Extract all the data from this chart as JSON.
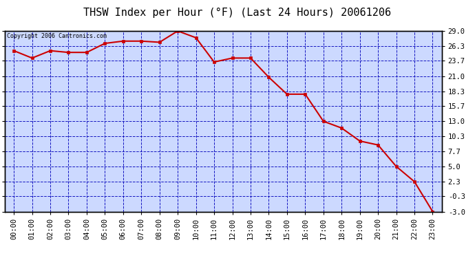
{
  "title": "THSW Index per Hour (°F) (Last 24 Hours) 20061206",
  "copyright": "Copyright 2006 Cantronics.com",
  "x_labels": [
    "00:00",
    "01:00",
    "02:00",
    "03:00",
    "04:00",
    "05:00",
    "06:00",
    "07:00",
    "08:00",
    "09:00",
    "10:00",
    "11:00",
    "12:00",
    "13:00",
    "14:00",
    "15:00",
    "16:00",
    "17:00",
    "18:00",
    "19:00",
    "20:00",
    "21:00",
    "22:00",
    "23:00"
  ],
  "y_values": [
    25.5,
    24.2,
    25.5,
    25.2,
    25.2,
    26.8,
    27.2,
    27.2,
    27.0,
    29.0,
    27.8,
    23.5,
    24.2,
    24.2,
    20.8,
    17.8,
    17.8,
    13.0,
    11.8,
    9.5,
    8.8,
    5.0,
    2.3,
    -3.0
  ],
  "yticks": [
    29.0,
    26.3,
    23.7,
    21.0,
    18.3,
    15.7,
    13.0,
    10.3,
    7.7,
    5.0,
    2.3,
    -0.3,
    -3.0
  ],
  "ymin": -3.0,
  "ymax": 29.0,
  "line_color": "#cc0000",
  "marker_color": "#cc0000",
  "background_color": "#ccd9ff",
  "grid_color": "#0000bb",
  "title_fontsize": 11,
  "axis_fontsize": 7.5
}
